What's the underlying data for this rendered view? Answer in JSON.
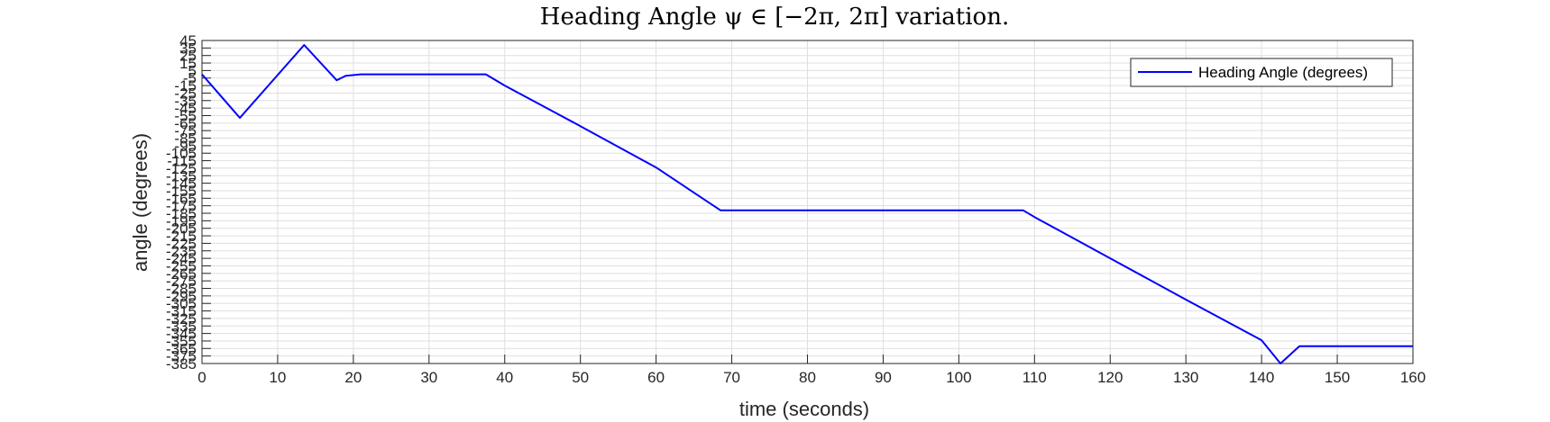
{
  "chart_data": {
    "type": "line",
    "title": "Heading Angle ψ ∈ [−2π, 2π] variation.",
    "xlabel": "time (seconds)",
    "ylabel": "angle (degrees)",
    "xlim": [
      0,
      160
    ],
    "ylim": [
      -385,
      45
    ],
    "x_ticks": [
      0,
      10,
      20,
      30,
      40,
      50,
      60,
      70,
      80,
      90,
      100,
      110,
      120,
      130,
      140,
      150,
      160
    ],
    "y_ticks": [
      45,
      35,
      25,
      15,
      5,
      -5,
      -15,
      -25,
      -35,
      -45,
      -55,
      -65,
      -75,
      -85,
      -95,
      -105,
      -115,
      -125,
      -135,
      -145,
      -155,
      -165,
      -175,
      -185,
      -195,
      -205,
      -215,
      -225,
      -235,
      -245,
      -255,
      -265,
      -275,
      -285,
      -295,
      -305,
      -315,
      -325,
      -335,
      -345,
      -355,
      -365,
      -375,
      -385
    ],
    "grid": true,
    "legend_position": "top-right",
    "series": [
      {
        "name": "Heading Angle (degrees)",
        "color": "#0000ff",
        "x": [
          0,
          5,
          13.5,
          17.8,
          19,
          21,
          37.5,
          40,
          50,
          60,
          68.5,
          70,
          108.5,
          110,
          120,
          130,
          140,
          142.5,
          145,
          160
        ],
        "y": [
          0,
          -58,
          39,
          -8,
          -2,
          0,
          0,
          -15,
          -69,
          -124,
          -181,
          -181,
          -181,
          -190,
          -245,
          -300,
          -354,
          -385,
          -362,
          -362
        ]
      }
    ]
  }
}
